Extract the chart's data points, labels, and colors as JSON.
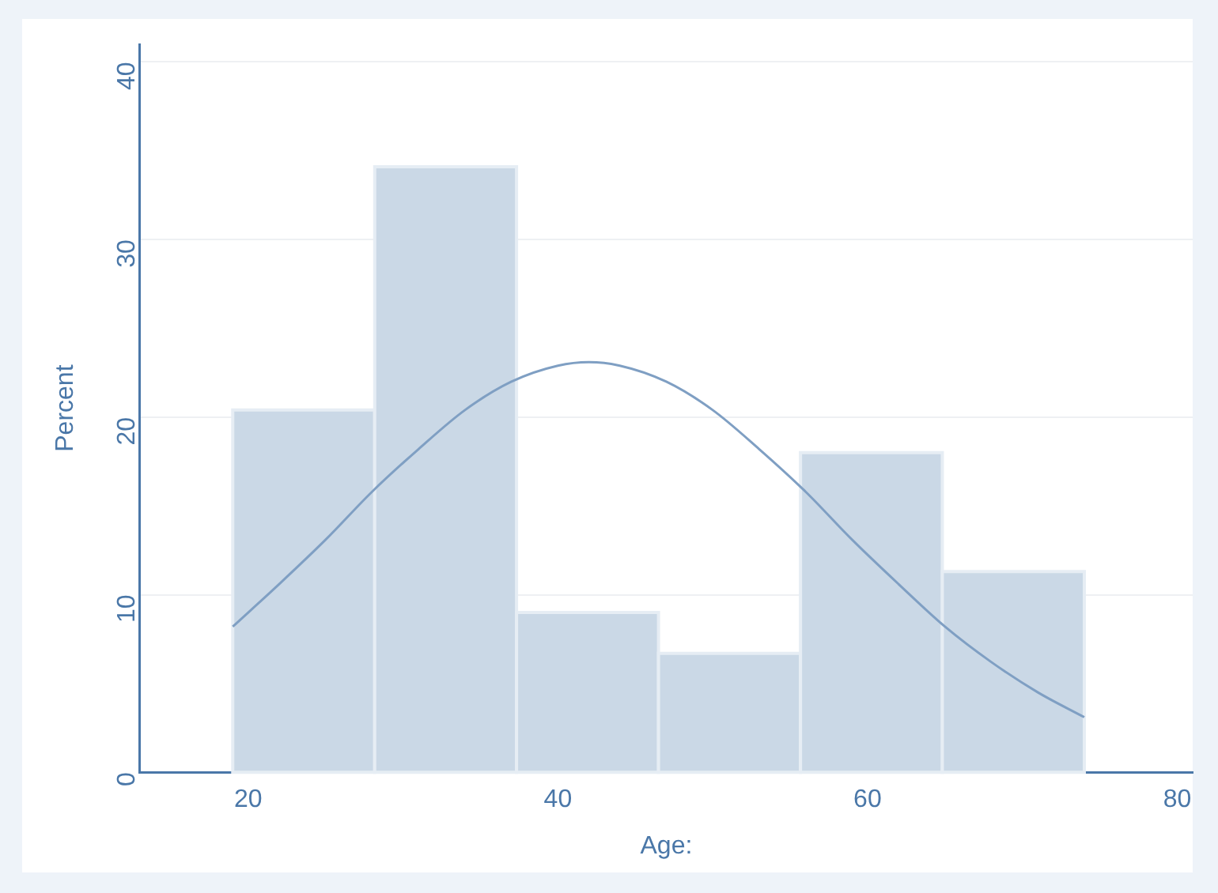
{
  "chart_data": {
    "type": "histogram",
    "xlabel": "Age:",
    "ylabel": "Percent",
    "xlim": [
      13,
      81
    ],
    "xticks": [
      20,
      40,
      60,
      80
    ],
    "ylim": [
      0,
      41
    ],
    "yticks": [
      0,
      10,
      20,
      30,
      40
    ],
    "grid": "y",
    "series": [
      {
        "color": "#cad8e6",
        "bins": [
          19,
          28.17,
          37.33,
          46.5,
          55.67,
          64.83,
          74
        ],
        "values": [
          20.4,
          34.1,
          9.0,
          6.7,
          18.0,
          11.3
        ]
      },
      {
        "type": "line",
        "color": "#7f9fc3",
        "x": [
          19,
          22,
          25,
          28,
          31,
          34,
          37,
          40,
          42,
          44,
          47,
          50,
          53,
          56,
          59,
          62,
          65,
          68,
          71,
          74
        ],
        "values": [
          8.2,
          10.6,
          13.1,
          15.8,
          18.2,
          20.4,
          22.0,
          22.9,
          23.1,
          22.9,
          22.0,
          20.4,
          18.2,
          15.8,
          13.1,
          10.6,
          8.2,
          6.2,
          4.5,
          3.1
        ]
      }
    ]
  }
}
